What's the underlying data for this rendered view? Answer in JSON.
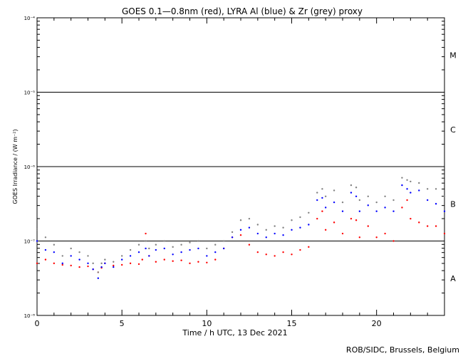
{
  "chart_data": {
    "type": "scatter",
    "title": "GOES 0.1—0.8nm (red), LYRA Al (blue) & Zr (grey) proxy",
    "xlabel": "Time / h UTC, 13 Dec 2021",
    "ylabel": "GOES Irradiance / (W m⁻²)",
    "xlim": [
      0,
      24
    ],
    "ylim_log10": [
      -8,
      -4
    ],
    "y_scale": "log",
    "grid": false,
    "x_ticks": [
      {
        "value": 0,
        "label": "0"
      },
      {
        "value": 5,
        "label": "5"
      },
      {
        "value": 10,
        "label": "10"
      },
      {
        "value": 15,
        "label": "15"
      },
      {
        "value": 20,
        "label": "20"
      }
    ],
    "y_ticks": [
      {
        "exp": -8,
        "label": "10⁻⁸"
      },
      {
        "exp": -7,
        "label": "10⁻⁷"
      },
      {
        "exp": -6,
        "label": "10⁻⁶"
      },
      {
        "exp": -5,
        "label": "10⁻⁵"
      },
      {
        "exp": -4,
        "label": "10⁻⁴"
      }
    ],
    "class_lines_log10": [
      -7,
      -6,
      -5
    ],
    "flare_classes": [
      {
        "label": "A",
        "log10_mid": -7.5
      },
      {
        "label": "B",
        "log10_mid": -6.5
      },
      {
        "label": "C",
        "log10_mid": -5.5
      },
      {
        "label": "M",
        "log10_mid": -4.5
      }
    ],
    "series": [
      {
        "color": "#ff0000",
        "x": [
          0,
          0.5,
          1,
          1.5,
          2,
          2.5,
          3,
          3.3,
          3.6,
          3.8,
          4,
          4.5,
          5,
          5.5,
          6,
          6.2,
          6.4,
          6.6,
          7,
          7.5,
          8,
          8.5,
          9,
          9.5,
          10,
          10.5,
          11,
          11.5,
          12,
          12.5,
          13,
          13.5,
          14,
          14.5,
          15,
          15.5,
          16,
          16.5,
          16.8,
          17,
          17.5,
          18,
          18.5,
          18.8,
          19,
          19.5,
          20,
          20.5,
          21,
          21.5,
          21.8,
          22,
          22.5,
          23,
          23.5,
          24
        ],
        "y_log10": [
          -7.3,
          -7.25,
          -7.3,
          -7.32,
          -7.33,
          -7.35,
          -7.34,
          -7.38,
          -7.42,
          -7.36,
          -7.3,
          -7.33,
          -7.32,
          -7.3,
          -7.31,
          -7.25,
          -6.9,
          -7.2,
          -7.28,
          -7.25,
          -7.27,
          -7.26,
          -7.3,
          -7.28,
          -7.29,
          -7.25,
          -7.1,
          -6.95,
          -6.92,
          -7.05,
          -7.15,
          -7.18,
          -7.2,
          -7.15,
          -7.18,
          -7.12,
          -7.08,
          -6.7,
          -6.6,
          -6.85,
          -6.75,
          -6.9,
          -6.7,
          -6.72,
          -6.95,
          -6.8,
          -6.95,
          -6.9,
          -7.0,
          -6.55,
          -6.45,
          -6.7,
          -6.75,
          -6.8,
          -6.8,
          -6.9
        ]
      },
      {
        "color": "#0000ff",
        "x": [
          0,
          0.5,
          1,
          1.5,
          2,
          2.5,
          3,
          3.3,
          3.6,
          3.8,
          4,
          4.5,
          5,
          5.5,
          6,
          6.4,
          6.6,
          7,
          7.5,
          8,
          8.5,
          9,
          9.5,
          10,
          10.5,
          11,
          11.5,
          12,
          12.5,
          13,
          13.5,
          14,
          14.5,
          15,
          15.5,
          16,
          16.5,
          16.8,
          17,
          17.5,
          18,
          18.5,
          18.8,
          19,
          19.5,
          20,
          20.5,
          21,
          21.5,
          21.8,
          22,
          22.5,
          23,
          23.5,
          24
        ],
        "y_log10": [
          -7.0,
          -7.12,
          -7.15,
          -7.3,
          -7.2,
          -7.25,
          -7.3,
          -7.38,
          -7.5,
          -7.35,
          -7.3,
          -7.35,
          -7.25,
          -7.2,
          -7.15,
          -7.1,
          -7.2,
          -7.12,
          -7.1,
          -7.18,
          -7.15,
          -7.12,
          -7.1,
          -7.2,
          -7.15,
          -7.1,
          -6.95,
          -6.85,
          -6.82,
          -6.9,
          -6.95,
          -6.9,
          -6.92,
          -6.85,
          -6.82,
          -6.78,
          -6.45,
          -6.42,
          -6.55,
          -6.48,
          -6.6,
          -6.35,
          -6.4,
          -6.6,
          -6.52,
          -6.6,
          -6.55,
          -6.6,
          -6.25,
          -6.3,
          -6.35,
          -6.32,
          -6.45,
          -6.5,
          -6.6
        ]
      },
      {
        "color": "#808080",
        "x": [
          0,
          0.5,
          1,
          1.5,
          2,
          2.5,
          3,
          3.3,
          3.6,
          3.8,
          4,
          4.5,
          5,
          5.5,
          6,
          6.4,
          6.6,
          7,
          7.5,
          8,
          8.5,
          9,
          9.5,
          10,
          10.5,
          11,
          11.5,
          12,
          12.5,
          13,
          13.5,
          14,
          14.5,
          15,
          15.5,
          16,
          16.5,
          16.8,
          17,
          17.5,
          18,
          18.5,
          18.8,
          19,
          19.5,
          20,
          20.5,
          21,
          21.5,
          21.8,
          22,
          22.5,
          23,
          23.5,
          24
        ],
        "y_log10": [
          -6.85,
          -6.95,
          -7.05,
          -7.2,
          -7.1,
          -7.15,
          -7.2,
          -7.3,
          -7.42,
          -7.3,
          -7.25,
          -7.28,
          -7.2,
          -7.12,
          -7.05,
          -7.0,
          -7.1,
          -7.05,
          -7.0,
          -7.08,
          -7.05,
          -7.02,
          -7.0,
          -7.1,
          -7.05,
          -7.0,
          -6.88,
          -6.72,
          -6.7,
          -6.78,
          -6.85,
          -6.8,
          -6.82,
          -6.72,
          -6.68,
          -6.62,
          -6.35,
          -6.3,
          -6.4,
          -6.32,
          -6.48,
          -6.25,
          -6.28,
          -6.45,
          -6.4,
          -6.48,
          -6.4,
          -6.45,
          -6.15,
          -6.18,
          -6.2,
          -6.22,
          -6.3,
          -6.3,
          -6.4
        ]
      }
    ]
  },
  "footer": {
    "credit": "ROB/SIDC, Brussels, Belgium"
  }
}
